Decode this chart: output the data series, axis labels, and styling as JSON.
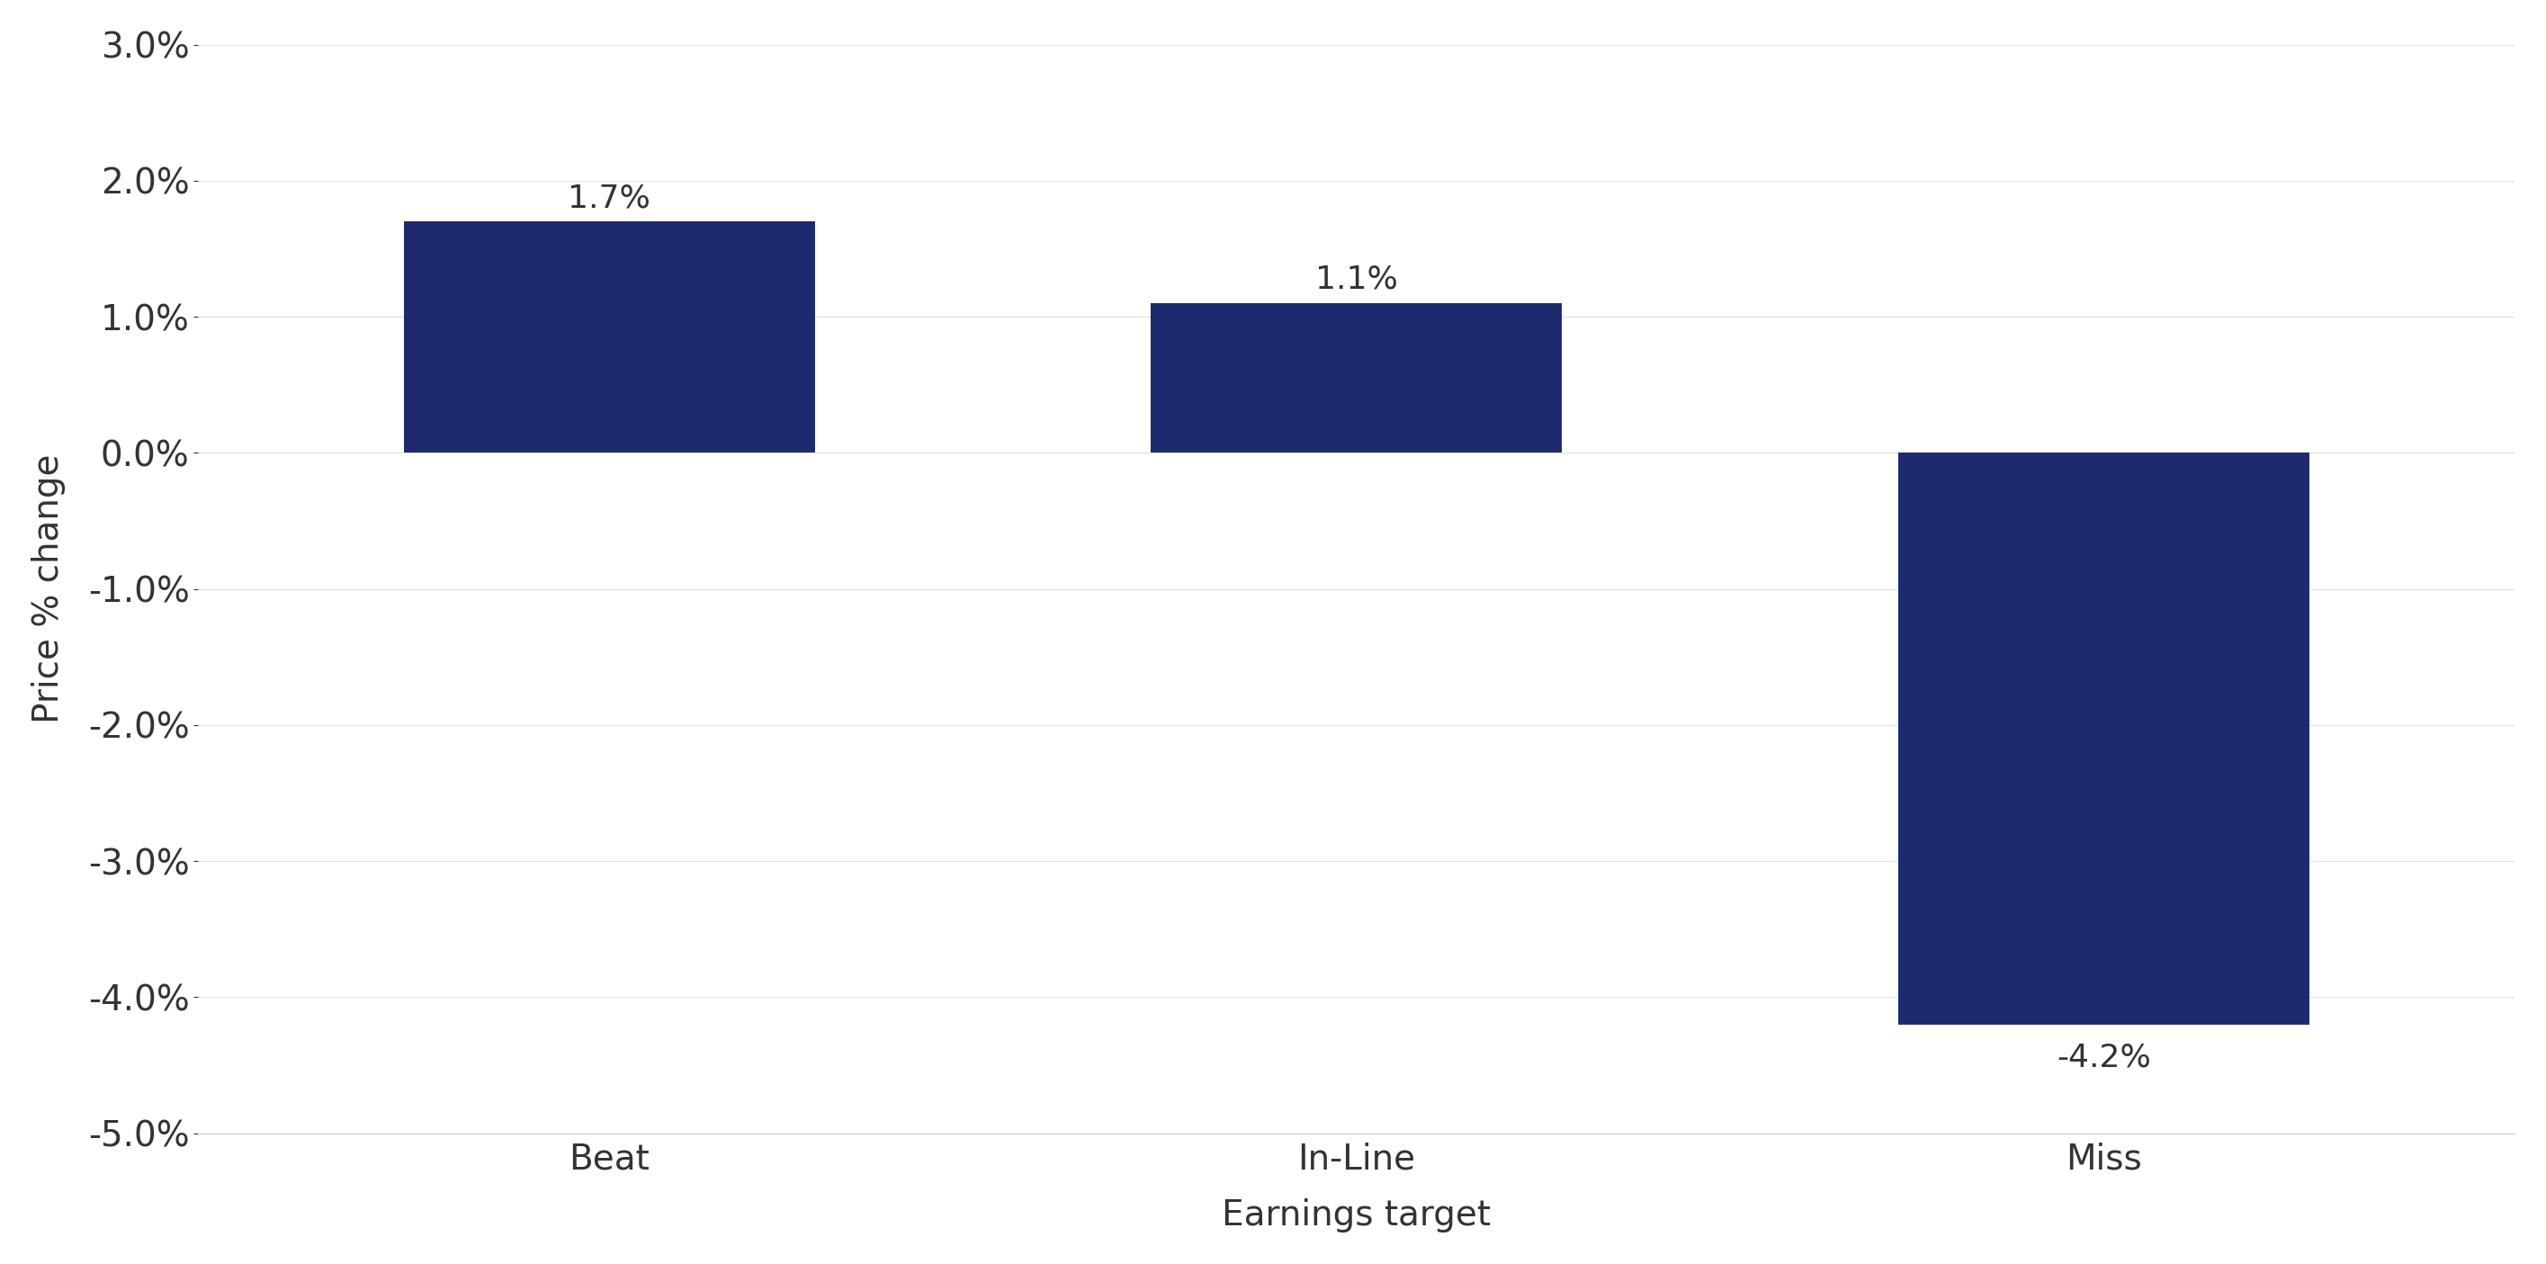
{
  "categories": [
    "Beat",
    "In-Line",
    "Miss"
  ],
  "values": [
    1.7,
    1.1,
    -4.2
  ],
  "bar_color": "#1e2a6e",
  "bar_labels": [
    "1.7%",
    "1.1%",
    "-4.2%"
  ],
  "xlabel": "Earnings target",
  "ylabel": "Price % change",
  "ylim": [
    -5.0,
    3.0
  ],
  "yticks": [
    -5.0,
    -4.0,
    -3.0,
    -2.0,
    -1.0,
    0.0,
    1.0,
    2.0,
    3.0
  ],
  "background_color": "#ffffff",
  "label_fontsize": 28,
  "tick_fontsize": 28,
  "annotation_fontsize": 26,
  "bar_width": 0.55,
  "xlim_left": -0.55,
  "xlim_right": 2.55
}
